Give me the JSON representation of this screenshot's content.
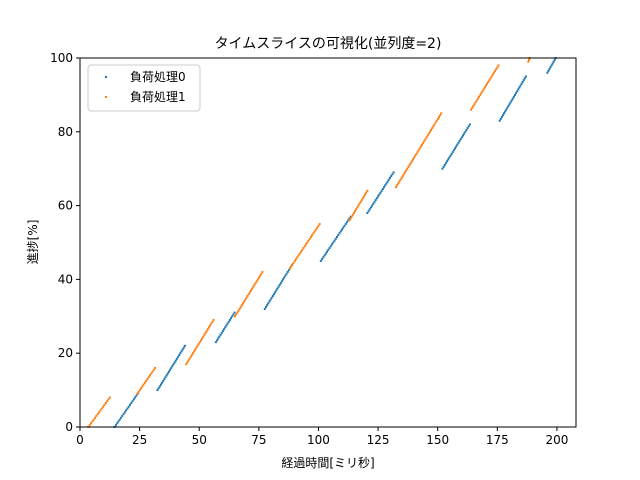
{
  "chart_data": {
    "type": "scatter",
    "title": "タイムスライスの可視化(並列度=2)",
    "xlabel": "経過時間[ミリ秒]",
    "ylabel": "進捗[%]",
    "xlim": [
      0,
      208
    ],
    "ylim": [
      0,
      100
    ],
    "xticks": [
      0,
      25,
      50,
      75,
      100,
      125,
      150,
      175,
      200
    ],
    "yticks": [
      0,
      20,
      40,
      60,
      80,
      100
    ],
    "grid": false,
    "legend_position": "top-left",
    "series": [
      {
        "name": "負荷処理0",
        "color": "#1f77b4",
        "segments": [
          {
            "x": [
              14.5,
              24.2
            ],
            "y": [
              0,
              9
            ]
          },
          {
            "x": [
              32.5,
              44.0
            ],
            "y": [
              10,
              22
            ]
          },
          {
            "x": [
              57.0,
              64.8
            ],
            "y": [
              23,
              31
            ]
          },
          {
            "x": [
              77.5,
              89.0
            ],
            "y": [
              32,
              44
            ]
          },
          {
            "x": [
              101.0,
              113.5
            ],
            "y": [
              45,
              57
            ]
          },
          {
            "x": [
              120.5,
              131.5
            ],
            "y": [
              58,
              69
            ]
          },
          {
            "x": [
              152.0,
              163.5
            ],
            "y": [
              70,
              82
            ]
          },
          {
            "x": [
              176.0,
              187.0
            ],
            "y": [
              83,
              95
            ]
          },
          {
            "x": [
              196.0,
              199.5
            ],
            "y": [
              96,
              100
            ]
          }
        ]
      },
      {
        "name": "負荷処理1",
        "color": "#ff7f0e",
        "segments": [
          {
            "x": [
              3.5,
              12.5
            ],
            "y": [
              0,
              8
            ]
          },
          {
            "x": [
              24.0,
              31.5
            ],
            "y": [
              9,
              16
            ]
          },
          {
            "x": [
              44.5,
              56.0
            ],
            "y": [
              17,
              29
            ]
          },
          {
            "x": [
              65.0,
              76.5
            ],
            "y": [
              30,
              42
            ]
          },
          {
            "x": [
              88.0,
              100.5
            ],
            "y": [
              43,
              55
            ]
          },
          {
            "x": [
              113.0,
              120.5
            ],
            "y": [
              56,
              64
            ]
          },
          {
            "x": [
              132.5,
              151.5
            ],
            "y": [
              65,
              85
            ]
          },
          {
            "x": [
              164.0,
              175.5
            ],
            "y": [
              86,
              98
            ]
          },
          {
            "x": [
              188.0,
              188.6
            ],
            "y": [
              99,
              100
            ]
          }
        ]
      }
    ]
  }
}
